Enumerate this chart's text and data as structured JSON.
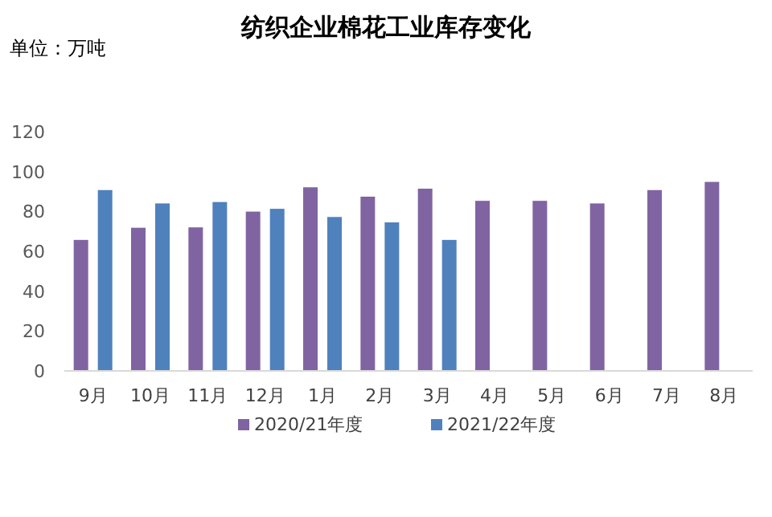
{
  "chart_data": {
    "type": "bar",
    "title": "纺织企业棉花工业库存变化",
    "ylabel": "单位：万吨",
    "categories": [
      "9月",
      "10月",
      "11月",
      "12月",
      "1月",
      "2月",
      "3月",
      "4月",
      "5月",
      "6月",
      "7月",
      "8月"
    ],
    "series": [
      {
        "name": "2020/21年度",
        "color": "#8064a2",
        "values": [
          65.7,
          71.8,
          72,
          79.9,
          92.1,
          87.4,
          91.4,
          85.3,
          85.3,
          84,
          90.7,
          94.8
        ]
      },
      {
        "name": "2021/22年度",
        "color": "#4f81bd",
        "values": [
          90.7,
          84,
          84.7,
          81.3,
          77.2,
          74.5,
          65.7,
          null,
          null,
          null,
          null,
          null
        ]
      }
    ],
    "ylim": [
      0,
      120
    ],
    "yticks": [
      0,
      20,
      40,
      60,
      80,
      100,
      120
    ],
    "grid": false,
    "legend": "bottom"
  }
}
